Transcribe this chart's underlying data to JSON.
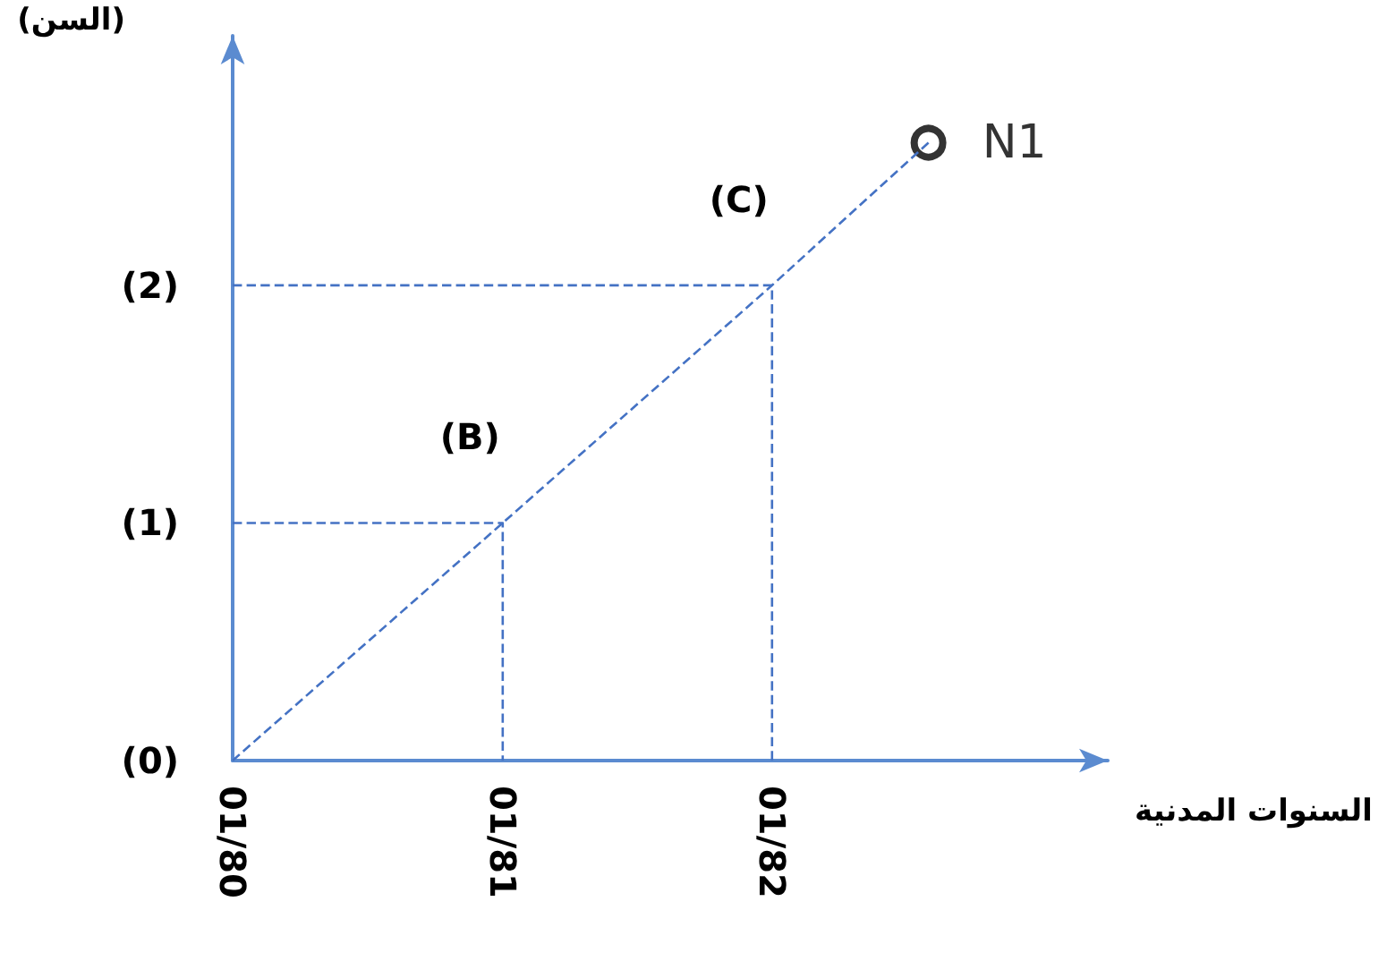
{
  "chart_data": {
    "type": "line",
    "xlabel": "السنوات المدنية",
    "ylabel": "(السن)",
    "xlim": [
      "1980-01",
      "1983-04"
    ],
    "ylim": [
      0,
      3.05
    ],
    "xticks": [
      {
        "value": "1980-01",
        "label": "01/80"
      },
      {
        "value": "1981-01",
        "label": "01/81"
      },
      {
        "value": "1982-01",
        "label": "01/82"
      }
    ],
    "yticks": [
      {
        "value": 0,
        "label": "(0)"
      },
      {
        "value": 1,
        "label": "(1)"
      },
      {
        "value": 2,
        "label": "(2)"
      }
    ],
    "grid": false,
    "legend": false,
    "marker": "none",
    "line_style": "dashed",
    "series": [
      {
        "color": "#4472c4",
        "x": [
          "1980-01",
          "1981-01",
          "1982-01",
          "1982-08"
        ],
        "values": [
          0,
          1,
          2,
          2.6
        ]
      },
      {
        "color": "#4472c4",
        "x": [
          "1980-01",
          "1981-01",
          "1981-01"
        ],
        "values": [
          1,
          1,
          0
        ]
      },
      {
        "color": "#4472c4",
        "x": [
          "1980-01",
          "1982-01",
          "1982-01"
        ],
        "values": [
          2,
          2,
          0
        ]
      },
      {
        "type": "scatter",
        "name": "N1",
        "marker": "circle",
        "color": "#000000",
        "x": [
          "1982-08"
        ],
        "values": [
          2.6
        ]
      }
    ],
    "annotations": [
      {
        "text": "(B)",
        "x": "1981-01",
        "y": 1
      },
      {
        "text": "(C)",
        "x": "1982-01",
        "y": 2
      }
    ]
  }
}
